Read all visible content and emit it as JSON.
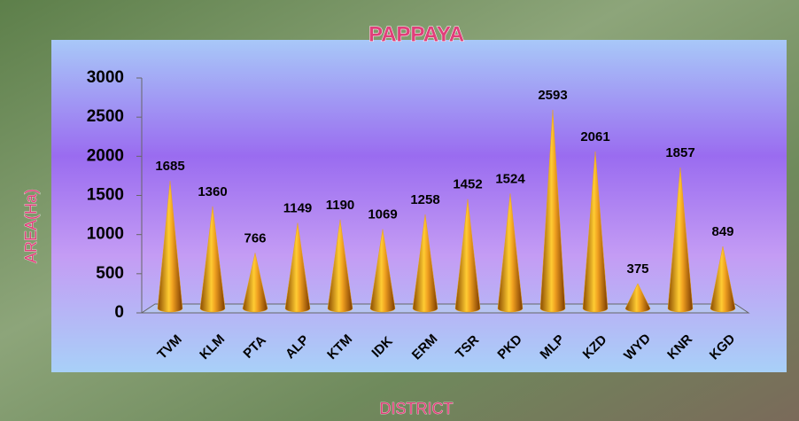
{
  "chart_data": {
    "type": "cone",
    "title": "PAPPAYA",
    "x_label": "DISTRICT",
    "y_label": "AREA(Ha)",
    "categories": [
      "TVM",
      "KLM",
      "PTA",
      "ALP",
      "KTM",
      "IDK",
      "ERM",
      "TSR",
      "PKD",
      "MLP",
      "KZD",
      "WYD",
      "KNR",
      "KGD"
    ],
    "values": [
      1685,
      1360,
      766,
      1149,
      1190,
      1069,
      1258,
      1452,
      1524,
      2593,
      2061,
      375,
      1857,
      849
    ],
    "color": "#e8a21a",
    "ylim": [
      0,
      3000
    ],
    "yticks": [
      0,
      500,
      1000,
      1500,
      2000,
      2500,
      3000
    ],
    "grid": false
  }
}
